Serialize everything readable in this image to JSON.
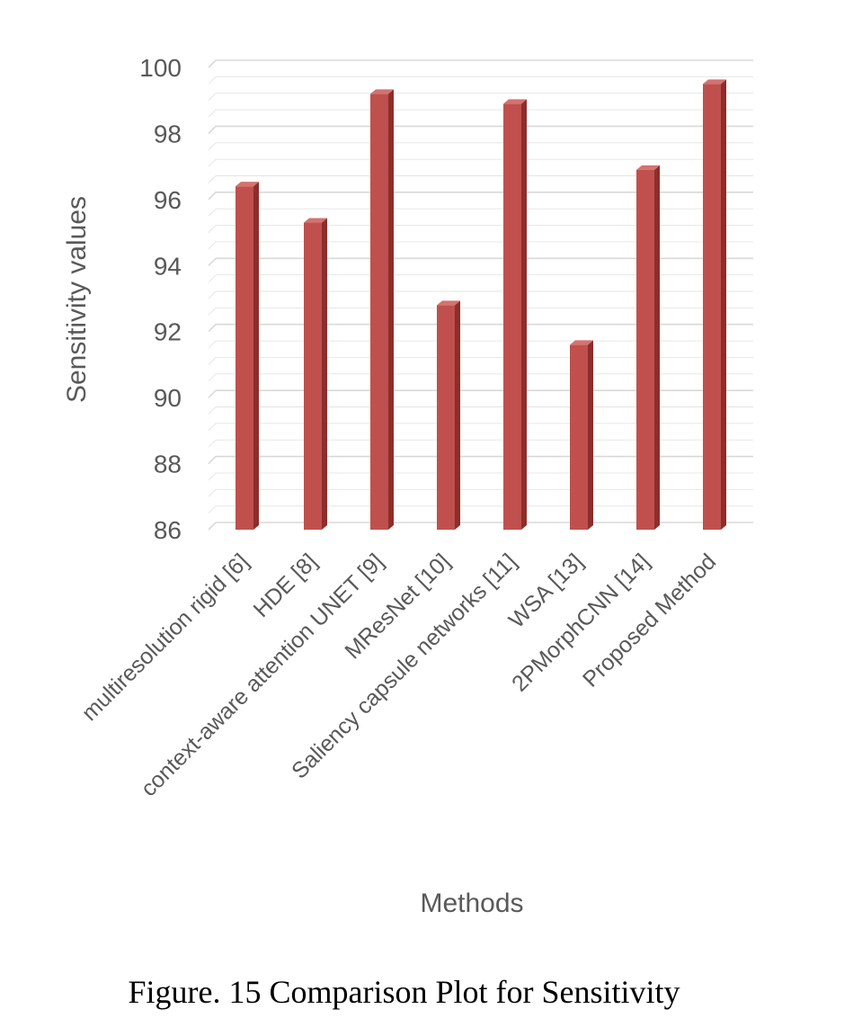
{
  "caption": "Figure. 15 Comparison Plot for Sensitivity",
  "chart_data": {
    "type": "bar",
    "style": "3d-column",
    "xlabel": "Methods",
    "ylabel": "Sensitivity values",
    "ylim": [
      86,
      100
    ],
    "yticks": [
      86,
      88,
      90,
      92,
      94,
      96,
      98,
      100
    ],
    "grid": true,
    "legend": "none",
    "categories": [
      "multiresolution rigid [6]",
      "HDE [8]",
      "context-aware attention UNET [9]",
      "MResNet [10]",
      "Saliency capsule networks [11]",
      "WSA [13]",
      "2PMorphCNN [14]",
      "Proposed Method"
    ],
    "series": [
      {
        "values": [
          96.4,
          95.3,
          99.2,
          92.8,
          98.9,
          91.6,
          96.9,
          99.5
        ]
      }
    ],
    "colors": {
      "bar_front": "#c0504d",
      "bar_side": "#8c2e2b",
      "bar_top": "#d4726f",
      "grid": "#d9d9d9",
      "text": "#595959"
    }
  }
}
